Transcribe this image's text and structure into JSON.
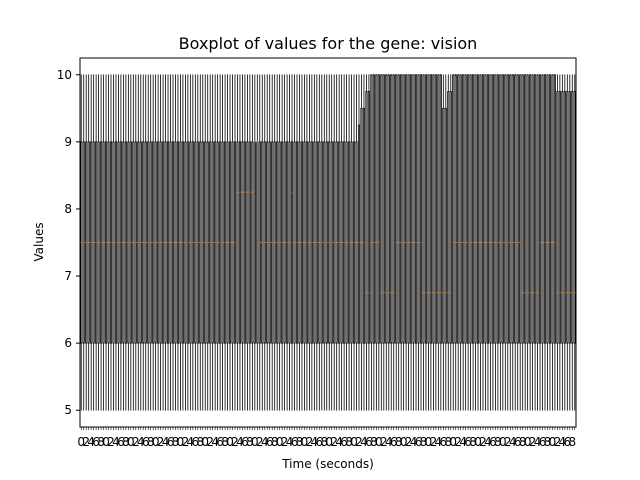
{
  "chart_data": {
    "type": "boxplot",
    "title": "Boxplot of values for the gene: vision",
    "xlabel": "Time (seconds)",
    "ylabel": "Values",
    "ylim": [
      4.75,
      10.25
    ],
    "yticks": [
      5,
      6,
      7,
      8,
      9,
      10
    ],
    "n_boxes": 200,
    "x_tick_step": 20,
    "colors": {
      "box": "#000000",
      "median": "#ff7f0e"
    },
    "segments": [
      {
        "from": 1,
        "to": 7,
        "min": 5,
        "q1": 6,
        "median": 7.5,
        "q3": 9,
        "max": 10
      },
      {
        "from": 8,
        "to": 55,
        "min": 5,
        "q1": 6,
        "median": 7.5,
        "q3": 9,
        "max": 10
      },
      {
        "from": 56,
        "to": 63,
        "min": 5,
        "q1": 6,
        "median": 7.5,
        "q3": 9,
        "max": 10
      },
      {
        "from": 64,
        "to": 70,
        "min": 5,
        "q1": 6,
        "median": 8.25,
        "q3": 9,
        "max": 10
      },
      {
        "from": 71,
        "to": 72,
        "min": 5,
        "q1": 6,
        "median": 9,
        "q3": 9,
        "max": 10
      },
      {
        "from": 73,
        "to": 85,
        "min": 5,
        "q1": 6,
        "median": 7.5,
        "q3": 9,
        "max": 10
      },
      {
        "from": 86,
        "to": 86,
        "min": 5,
        "q1": 6,
        "median": 8.25,
        "q3": 9,
        "max": 10
      },
      {
        "from": 87,
        "to": 112,
        "min": 5,
        "q1": 6,
        "median": 7.5,
        "q3": 9,
        "max": 10
      },
      {
        "from": 113,
        "to": 113,
        "min": 5,
        "q1": 6,
        "median": 7.5,
        "q3": 9.25,
        "max": 10
      },
      {
        "from": 114,
        "to": 115,
        "min": 5,
        "q1": 6,
        "median": 7.5,
        "q3": 9.5,
        "max": 10
      },
      {
        "from": 116,
        "to": 117,
        "min": 5,
        "q1": 6,
        "median": 6.75,
        "q3": 9.75,
        "max": 10
      },
      {
        "from": 118,
        "to": 121,
        "min": 5,
        "q1": 6,
        "median": 7.5,
        "q3": 10,
        "max": 10
      },
      {
        "from": 122,
        "to": 127,
        "min": 5,
        "q1": 6,
        "median": 6.75,
        "q3": 10,
        "max": 10
      },
      {
        "from": 128,
        "to": 138,
        "min": 5,
        "q1": 6,
        "median": 7.5,
        "q3": 10,
        "max": 10
      },
      {
        "from": 139,
        "to": 146,
        "min": 5,
        "q1": 6,
        "median": 6.75,
        "q3": 10,
        "max": 10
      },
      {
        "from": 147,
        "to": 148,
        "min": 5,
        "q1": 6,
        "median": 6.75,
        "q3": 9.5,
        "max": 10
      },
      {
        "from": 149,
        "to": 150,
        "min": 5,
        "q1": 6,
        "median": 6.75,
        "q3": 9.75,
        "max": 10
      },
      {
        "from": 151,
        "to": 178,
        "min": 5,
        "q1": 6,
        "median": 7.5,
        "q3": 10,
        "max": 10
      },
      {
        "from": 179,
        "to": 185,
        "min": 5,
        "q1": 6,
        "median": 6.75,
        "q3": 10,
        "max": 10
      },
      {
        "from": 186,
        "to": 192,
        "min": 5,
        "q1": 6,
        "median": 7.5,
        "q3": 10,
        "max": 10
      },
      {
        "from": 193,
        "to": 196,
        "min": 5,
        "q1": 6,
        "median": 6.75,
        "q3": 9.75,
        "max": 10
      },
      {
        "from": 197,
        "to": 200,
        "min": 5,
        "q1": 6,
        "median": 6.75,
        "q3": 9.75,
        "max": 10
      }
    ]
  }
}
